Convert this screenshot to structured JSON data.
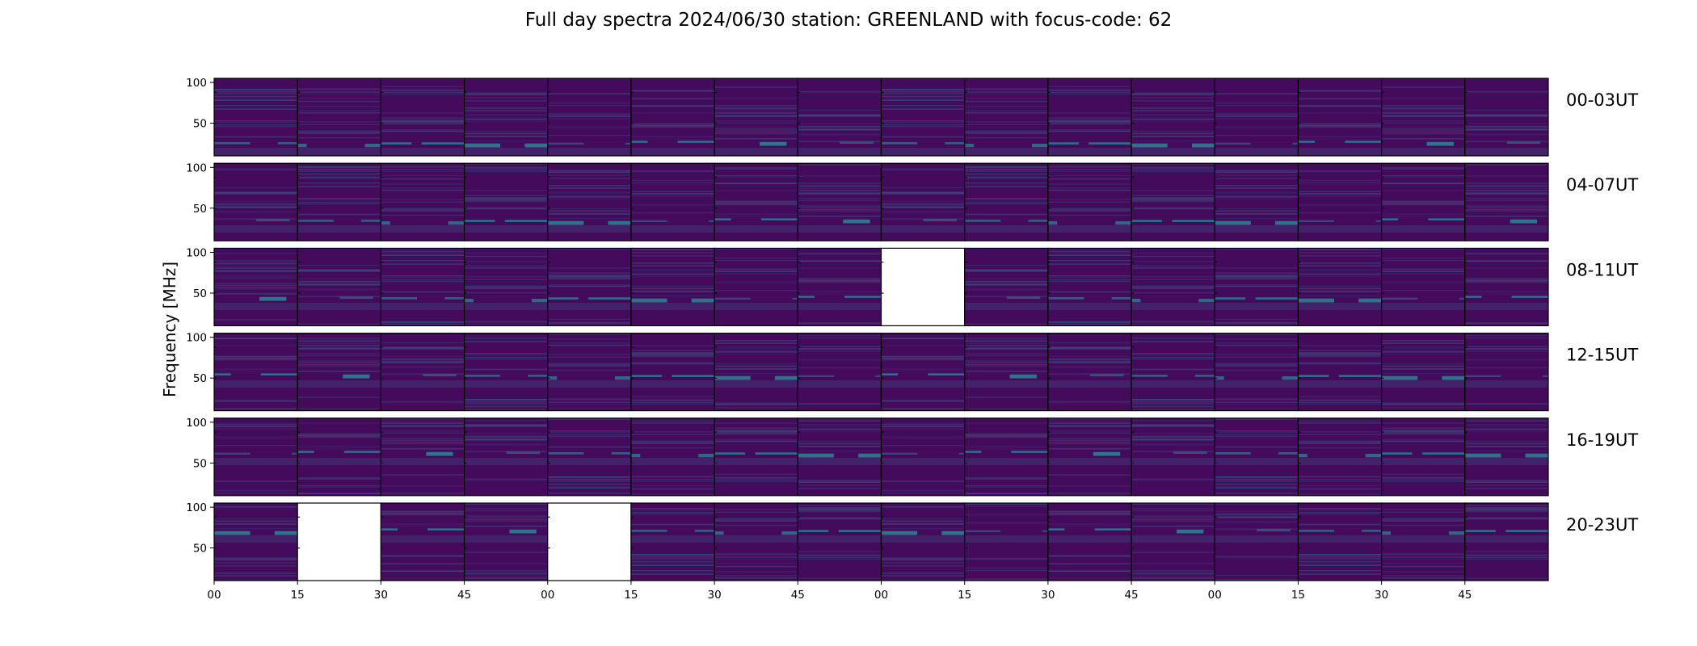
{
  "title": "Full day spectra 2024/06/30 station: GREENLAND with focus-code: 62",
  "colors": {
    "background": "#440a5c",
    "band_light": "#3a6f8f",
    "band_bright": "#25a3a0",
    "missing": "#ffffff",
    "frame": "#000000"
  },
  "chart_data": {
    "type": "heatmap",
    "title": "Full day spectra 2024/06/30 station: GREENLAND with focus-code: 62",
    "ylabel": "Frequency [MHz]",
    "xlabel": "",
    "ylim": [
      10,
      105
    ],
    "yticks": [
      50,
      100
    ],
    "xticks": [
      "00",
      "15",
      "30",
      "45",
      "00",
      "15",
      "30",
      "45",
      "00",
      "15",
      "30",
      "45",
      "00",
      "15",
      "30",
      "45"
    ],
    "panels_per_row": 16,
    "panel_minutes": 15,
    "rows": [
      {
        "label": "00-03UT",
        "missing_panels": []
      },
      {
        "label": "04-07UT",
        "missing_panels": []
      },
      {
        "label": "08-11UT",
        "missing_panels": [
          8
        ]
      },
      {
        "label": "12-15UT",
        "missing_panels": []
      },
      {
        "label": "16-19UT",
        "missing_panels": []
      },
      {
        "label": "20-23UT",
        "missing_panels": [
          1,
          4
        ]
      }
    ]
  }
}
